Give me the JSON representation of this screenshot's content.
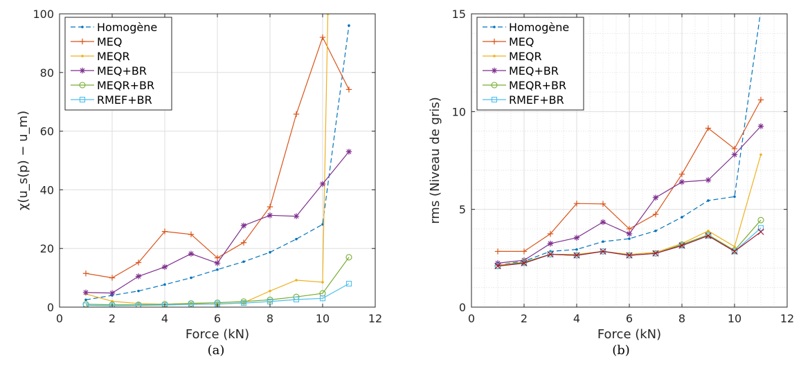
{
  "captions": [
    "(a)",
    "(b)"
  ],
  "colors": {
    "Homogène": "#0072BD",
    "MEQ": "#D95319",
    "MEQR": "#EDB120",
    "MEQ+BR": "#7E2F8E",
    "MEQR+BR": "#77AC30",
    "RMEF+BR": "#4DBEEE"
  },
  "chart_data": [
    {
      "type": "line",
      "xlabel": "Force (kN)",
      "ylabel": "χ(u_s(p) − u_m)",
      "xlim": [
        0,
        12
      ],
      "ylim": [
        0,
        100
      ],
      "xticks": [
        0,
        2,
        4,
        6,
        8,
        10,
        12
      ],
      "yticks": [
        0,
        20,
        40,
        60,
        80,
        100
      ],
      "grid": true,
      "legend_position": "top-left",
      "x": [
        1,
        2,
        3,
        4,
        5,
        6,
        7,
        8,
        9,
        10,
        11
      ],
      "series": [
        {
          "name": "Homogène",
          "marker": "dot",
          "dashed": true,
          "x": [
            1,
            2,
            3,
            4,
            5,
            6,
            7,
            8,
            9,
            10,
            11
          ],
          "values": [
            2.5,
            4,
            5.5,
            7.7,
            10,
            12.8,
            15.5,
            18.7,
            23.2,
            28.2,
            96
          ]
        },
        {
          "name": "MEQ",
          "marker": "plus",
          "x": [
            1,
            2,
            3,
            4,
            5,
            6,
            7,
            8,
            9,
            10,
            11
          ],
          "values": [
            11.5,
            10,
            15.2,
            25.8,
            24.8,
            16.8,
            22,
            34.2,
            65.8,
            92,
            74.2
          ]
        },
        {
          "name": "MEQR",
          "marker": "dot",
          "x": [
            1,
            2,
            3,
            4,
            5,
            6,
            7,
            8,
            9,
            10,
            10.2
          ],
          "values": [
            4.5,
            2,
            1.2,
            1,
            1.2,
            1,
            1.5,
            5.5,
            9.2,
            8.5,
            100
          ]
        },
        {
          "name": "MEQ+BR",
          "marker": "star",
          "x": [
            1,
            2,
            3,
            4,
            5,
            6,
            7,
            8,
            9,
            10,
            11
          ],
          "values": [
            5,
            4.8,
            10.5,
            13.7,
            18.2,
            15,
            27.8,
            31.3,
            31,
            42,
            53
          ]
        },
        {
          "name": "MEQR+BR",
          "marker": "circle",
          "x": [
            1,
            2,
            3,
            4,
            5,
            6,
            7,
            8,
            9,
            10,
            11
          ],
          "values": [
            1,
            0.8,
            0.8,
            1,
            1.3,
            1.5,
            1.9,
            2.5,
            3.5,
            4.7,
            17
          ]
        },
        {
          "name": "RMEF+BR",
          "marker": "square",
          "x": [
            1,
            2,
            3,
            4,
            5,
            6,
            7,
            8,
            9,
            10,
            11
          ],
          "values": [
            0.6,
            0.5,
            0.6,
            0.7,
            0.9,
            1.1,
            1.4,
            1.9,
            2.6,
            3,
            8
          ]
        }
      ]
    },
    {
      "type": "line",
      "xlabel": "Force (kN)",
      "ylabel": "rms (Niveau de gris)",
      "xlim": [
        0,
        12
      ],
      "ylim": [
        0,
        15
      ],
      "xticks": [
        0,
        2,
        4,
        6,
        8,
        10,
        12
      ],
      "yticks": [
        0,
        5,
        10,
        15
      ],
      "grid": true,
      "minor_grid": true,
      "legend_position": "top-left",
      "x": [
        1,
        2,
        3,
        4,
        5,
        6,
        7,
        8,
        9,
        10,
        11
      ],
      "series": [
        {
          "name": "Homogène",
          "marker": "dot",
          "dashed": true,
          "x": [
            1,
            2,
            3,
            4,
            5,
            6,
            7,
            8,
            9,
            10,
            11
          ],
          "values": [
            2.15,
            2.35,
            2.85,
            2.95,
            3.35,
            3.5,
            3.9,
            4.6,
            5.45,
            5.65,
            15.2
          ]
        },
        {
          "name": "MEQ",
          "marker": "plus",
          "x": [
            1,
            2,
            3,
            4,
            5,
            6,
            7,
            8,
            9,
            10,
            11
          ],
          "values": [
            2.85,
            2.85,
            3.75,
            5.3,
            5.28,
            4,
            4.75,
            6.8,
            9.15,
            8.1,
            10.6
          ]
        },
        {
          "name": "MEQR",
          "marker": "dot",
          "x": [
            1,
            2,
            3,
            4,
            5,
            6,
            7,
            8,
            9,
            10,
            11
          ],
          "values": [
            2.15,
            2.3,
            2.7,
            2.7,
            2.85,
            2.7,
            2.8,
            3.25,
            3.9,
            3.1,
            7.8
          ]
        },
        {
          "name": "MEQ+BR",
          "marker": "star",
          "x": [
            1,
            2,
            3,
            4,
            5,
            6,
            7,
            8,
            9,
            10,
            11
          ],
          "values": [
            2.25,
            2.4,
            3.25,
            3.55,
            4.35,
            3.75,
            5.6,
            6.4,
            6.5,
            7.8,
            9.25
          ]
        },
        {
          "name": "MEQR+BR",
          "marker": "circle",
          "x": [
            1,
            2,
            3,
            4,
            5,
            6,
            7,
            8,
            9,
            10,
            11
          ],
          "values": [
            2.1,
            2.3,
            2.7,
            2.65,
            2.85,
            2.65,
            2.75,
            3.2,
            3.7,
            2.9,
            4.45
          ]
        },
        {
          "name": "RMEF+BR",
          "marker": "square",
          "x": [
            1,
            2,
            3,
            4,
            5,
            6,
            7,
            8,
            9,
            10,
            11
          ],
          "values": [
            2.1,
            2.25,
            2.7,
            2.65,
            2.85,
            2.65,
            2.75,
            3.15,
            3.65,
            2.85,
            4.05
          ]
        },
        {
          "marker": "cross",
          "x": [
            1,
            2,
            3,
            4,
            5,
            6,
            7,
            8,
            9,
            10,
            11
          ],
          "values": [
            2.1,
            2.25,
            2.7,
            2.65,
            2.85,
            2.65,
            2.75,
            3.15,
            3.65,
            2.85,
            3.85
          ]
        }
      ]
    }
  ]
}
